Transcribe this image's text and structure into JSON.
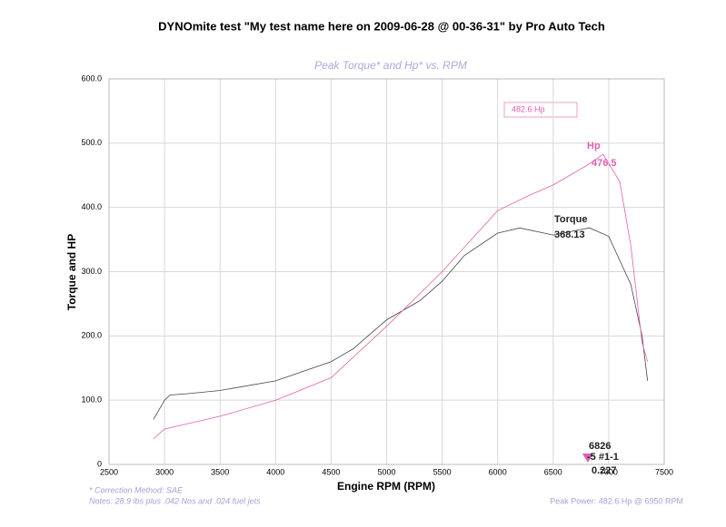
{
  "chart_data": {
    "type": "line",
    "title": "DYNOmite test \"My test name here on 2009-06-28 @ 00-36-31\" by Pro Auto Tech",
    "subtitle": "Peak Torque* and Hp* vs. RPM",
    "x_label": "Engine RPM (RPM)",
    "y_label": "Torque and HP",
    "xlim": [
      2500,
      7500
    ],
    "xticks": [
      2500,
      3000,
      3500,
      4000,
      4500,
      5000,
      5500,
      6000,
      6500,
      7000,
      7500
    ],
    "ylim": [
      0,
      600
    ],
    "yticks": [
      0,
      {
        "value": 100,
        "label": "100.0"
      },
      {
        "value": 200,
        "label": "200.0"
      },
      {
        "value": 300,
        "label": "300.0"
      },
      {
        "value": 400,
        "label": "400.0"
      },
      {
        "value": 500,
        "label": "500.0"
      },
      {
        "value": 600,
        "label": "600.0"
      }
    ],
    "grid": true,
    "series": [
      {
        "name": "Torque",
        "color": "#444444",
        "x": [
          2900,
          3000,
          3050,
          3200,
          3500,
          4000,
          4500,
          4700,
          5000,
          5300,
          5500,
          5700,
          6000,
          6200,
          6500,
          6826,
          7000,
          7200,
          7300,
          7350
        ],
        "values": [
          70,
          100,
          108,
          110,
          115,
          130,
          160,
          180,
          225,
          255,
          285,
          325,
          360,
          368,
          357,
          368.13,
          355,
          280,
          200,
          130
        ]
      },
      {
        "name": "Hp",
        "color": "#e060b0",
        "x": [
          2900,
          3000,
          3500,
          4000,
          4500,
          5000,
          5500,
          6000,
          6300,
          6500,
          6800,
          6950,
          7100,
          7200,
          7300,
          7350
        ],
        "values": [
          40,
          55,
          75,
          100,
          135,
          215,
          300,
          395,
          420,
          435,
          465,
          482.6,
          440,
          340,
          190,
          160
        ]
      }
    ],
    "annotations": [
      "482.6 Hp",
      "476.5",
      "368.13",
      "6826",
      "-5 #1-1",
      "0.227"
    ],
    "notes": [
      "* Correction Method: SAE",
      "Notes: 28.9 lbs plus .042 Nos and .024 fuel jets"
    ],
    "peak_note": "Peak Power: 482.6 Hp @ 6950 RPM"
  }
}
